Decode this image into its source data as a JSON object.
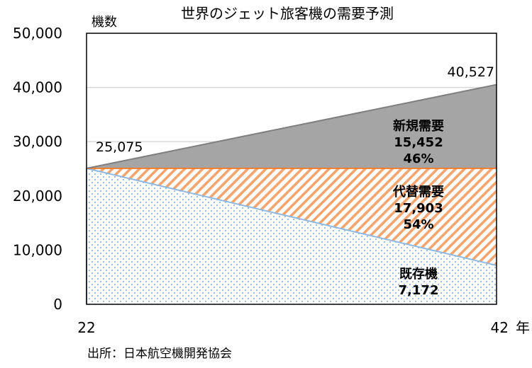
{
  "chart_data": {
    "type": "area",
    "title": "世界のジェット旅客機の需要予測",
    "ylabel": "機数",
    "xlabel": "年",
    "x": [
      22,
      42
    ],
    "x_tick_labels": [
      "22",
      "42"
    ],
    "ylim": [
      0,
      50000
    ],
    "y_ticks": [
      0,
      10000,
      20000,
      30000,
      40000,
      50000
    ],
    "y_tick_labels": [
      "0",
      "10,000",
      "20,000",
      "30,000",
      "40,000",
      "50,000"
    ],
    "grid": true,
    "series": [
      {
        "name": "既存機",
        "values": [
          25075,
          7172
        ],
        "color": "#9dc3e6",
        "pattern": "dots"
      },
      {
        "name": "代替需要",
        "values": [
          0,
          17903
        ],
        "color": "#ed7d31",
        "pattern": "diagonal-hatch"
      },
      {
        "name": "新規需要",
        "values": [
          0,
          15452
        ],
        "color": "#a5a5a5",
        "pattern": "solid"
      }
    ],
    "totals": [
      25075,
      40527
    ],
    "total_labels": [
      "25,075",
      "40,527"
    ],
    "segment_labels": [
      {
        "name": "新規需要",
        "value": "15,452",
        "share": "46%"
      },
      {
        "name": "代替需要",
        "value": "17,903",
        "share": "54%"
      },
      {
        "name": "既存機",
        "value": "7,172",
        "share": ""
      }
    ],
    "source": "出所：日本航空機開発協会"
  }
}
